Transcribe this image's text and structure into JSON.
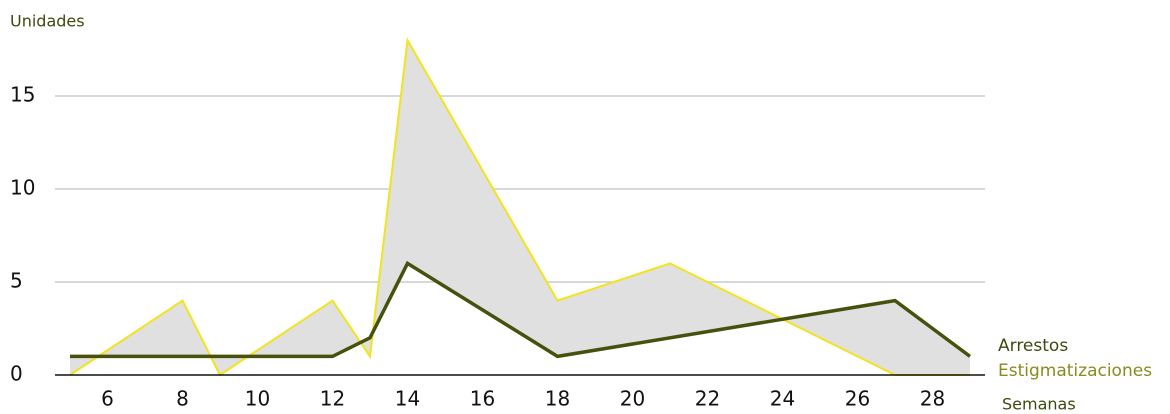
{
  "chart_data": {
    "type": "line",
    "y_label": "Unidades",
    "x_label": "Semanas",
    "series": [
      {
        "name": "Arrestos",
        "color": "#45520d",
        "label_color": "#3d4a0f",
        "x": [
          5,
          12,
          13,
          14,
          18,
          27,
          29
        ],
        "values": [
          1,
          1,
          2,
          6,
          1,
          4,
          1
        ]
      },
      {
        "name": "Estigmatizaciones",
        "color": "#f2e41c",
        "label_color": "#8a8a1e",
        "x": [
          5,
          8,
          9,
          12,
          13,
          14,
          18,
          21,
          27,
          29
        ],
        "values": [
          0,
          4,
          0,
          4,
          1,
          18,
          4,
          6,
          0,
          0
        ]
      }
    ],
    "fill_between": true,
    "fill_color": "#e0e0e0",
    "xlim": [
      4.6,
      29.4
    ],
    "xticks": [
      6,
      8,
      10,
      12,
      14,
      16,
      18,
      20,
      22,
      24,
      26,
      28
    ],
    "ylim": [
      0,
      20
    ],
    "yticks": [
      0,
      5,
      10,
      15
    ],
    "grid": true
  }
}
